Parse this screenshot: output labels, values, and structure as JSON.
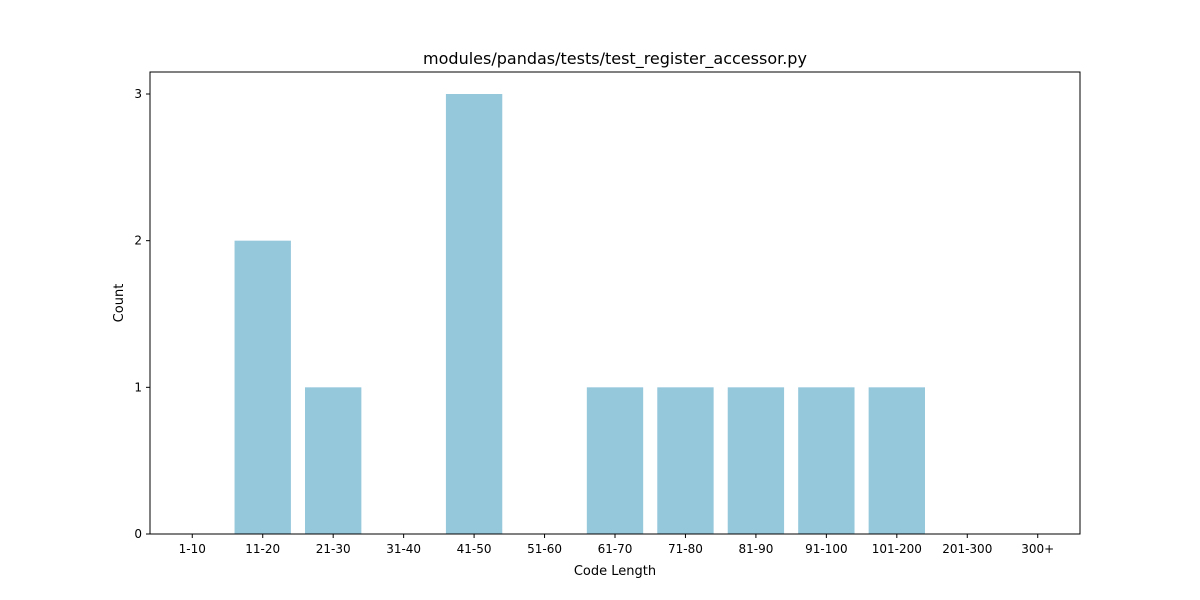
{
  "chart_data": {
    "type": "bar",
    "title": "modules/pandas/tests/test_register_accessor.py",
    "xlabel": "Code Length",
    "ylabel": "Count",
    "categories": [
      "1-10",
      "11-20",
      "21-30",
      "31-40",
      "41-50",
      "51-60",
      "61-70",
      "71-80",
      "81-90",
      "91-100",
      "101-200",
      "201-300",
      "300+"
    ],
    "values": [
      0,
      2,
      1,
      0,
      3,
      0,
      1,
      1,
      1,
      1,
      1,
      0,
      0
    ],
    "ylim": [
      0,
      3.15
    ],
    "yticks": [
      0,
      1,
      2,
      3
    ],
    "bar_color": "#96c8dc",
    "grid": false,
    "legend": false
  }
}
